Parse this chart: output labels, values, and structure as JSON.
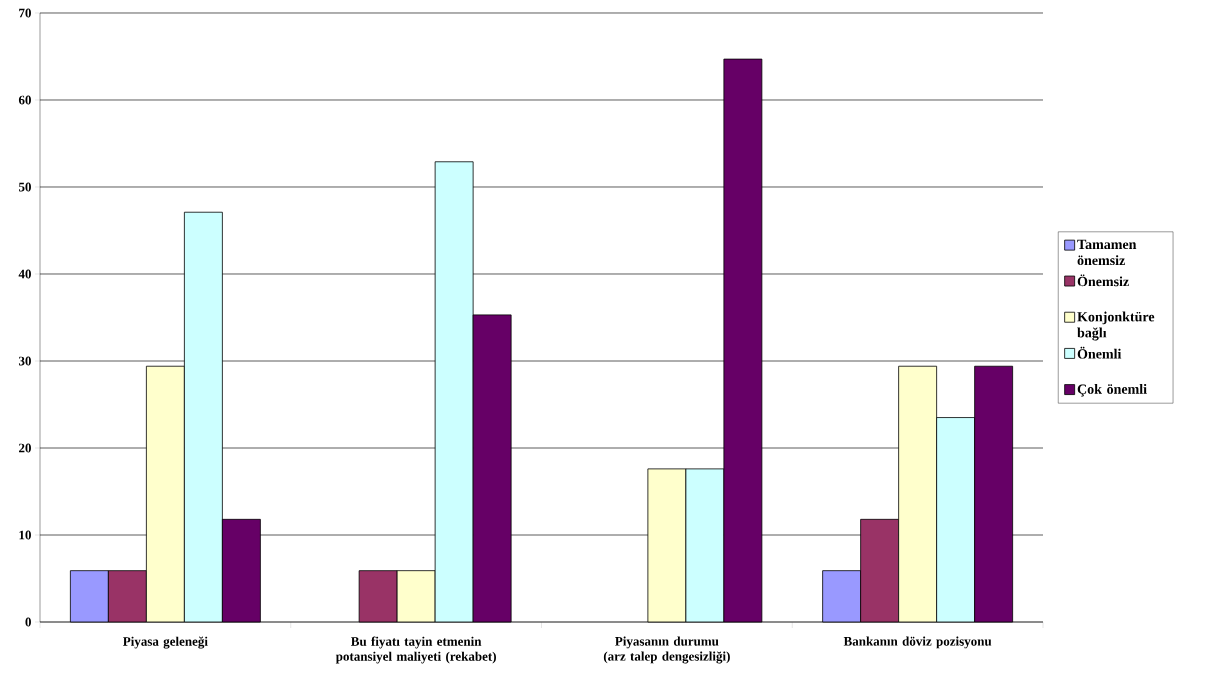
{
  "chart_data": {
    "type": "bar",
    "categories": [
      "Piyasa geleneği",
      "Bu fiyatı tayin etmenin potansiyel maliyeti (rekabet)",
      "Piyasanın durumu (arz talep dengesizliği)",
      "Bankanın döviz pozisyonu"
    ],
    "series": [
      {
        "name": "Tamamen önemsiz",
        "color": "#9999ff",
        "values": [
          5.9,
          null,
          null,
          5.9
        ]
      },
      {
        "name": "Önemsiz",
        "color": "#993366",
        "values": [
          5.9,
          5.9,
          null,
          11.8
        ]
      },
      {
        "name": "Konjonktüre bağlı",
        "color": "#ffffcc",
        "values": [
          29.4,
          5.9,
          17.6,
          29.4
        ]
      },
      {
        "name": "Önemli",
        "color": "#ccffff",
        "values": [
          47.1,
          52.9,
          17.6,
          23.5
        ]
      },
      {
        "name": "Çok önemli",
        "color": "#660066",
        "values": [
          11.8,
          35.3,
          64.7,
          29.4
        ]
      }
    ],
    "ylim": [
      0,
      70
    ],
    "yticks": [
      0,
      10,
      20,
      30,
      40,
      50,
      60,
      70
    ],
    "grid": "y",
    "legend": "right"
  }
}
